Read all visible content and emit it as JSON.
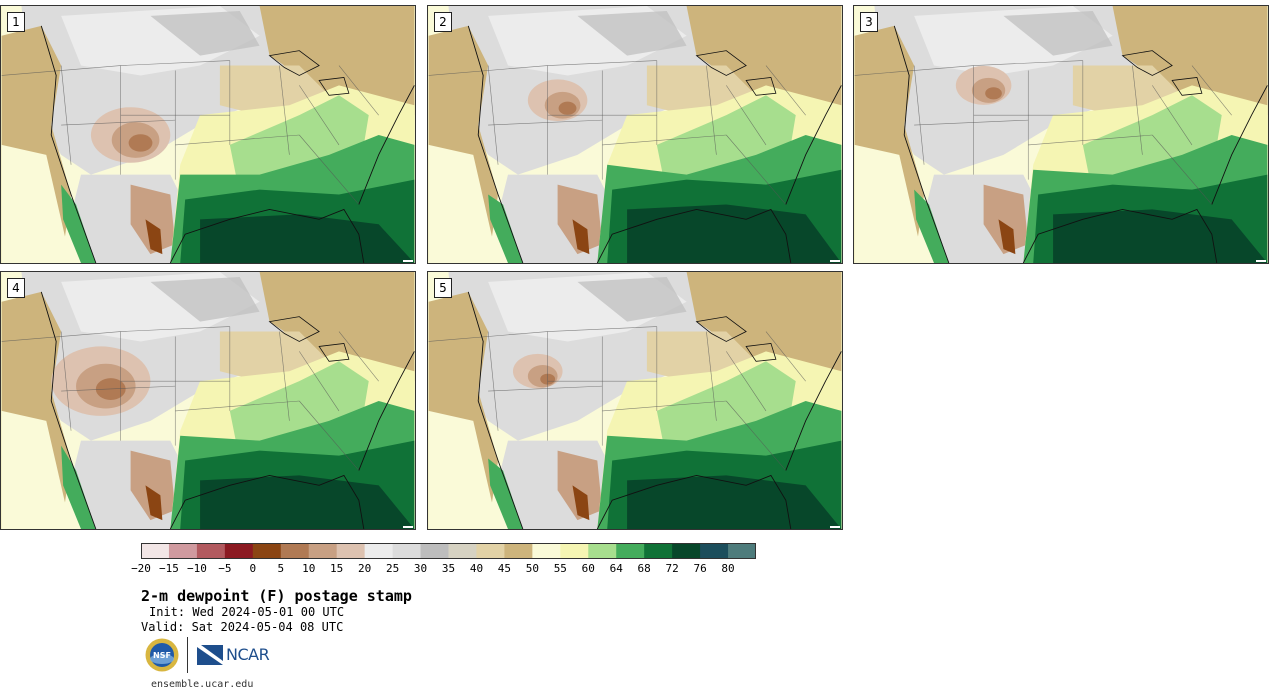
{
  "panels": [
    {
      "number": "1"
    },
    {
      "number": "2"
    },
    {
      "number": "3"
    },
    {
      "number": "4"
    },
    {
      "number": "5"
    }
  ],
  "legend": {
    "colors": [
      "#f2e6e6",
      "#d09a9f",
      "#b25a5f",
      "#8c1a22",
      "#8b4513",
      "#b07a54",
      "#c8a083",
      "#ddc2b0",
      "#ececec",
      "#dcdcdc",
      "#bdbdbd",
      "#d6d2c2",
      "#e2d2a6",
      "#cdb47c",
      "#fafad8",
      "#f5f5b3",
      "#a7de8e",
      "#44ac5c",
      "#107237",
      "#07472a",
      "#1c4e5c",
      "#4e7c7c"
    ],
    "labels": [
      "−20",
      "−15",
      "−10",
      "−5",
      "0",
      "5",
      "10",
      "15",
      "20",
      "25",
      "30",
      "35",
      "40",
      "45",
      "50",
      "55",
      "60",
      "64",
      "68",
      "72",
      "76",
      "80"
    ]
  },
  "title": "2-m dewpoint (F) postage stamp",
  "init": "Init: Wed 2024-05-01 00 UTC",
  "valid": "Valid: Sat 2024-05-04 08 UTC",
  "logos": {
    "nsf": "NSF",
    "ncar": "NCAR"
  },
  "site": "ensemble.ucar.edu"
}
